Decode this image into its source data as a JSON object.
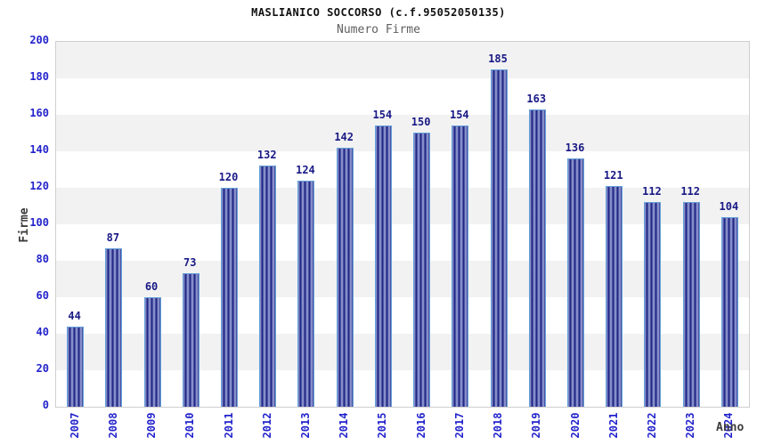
{
  "chart_data": {
    "type": "bar",
    "title": "MASLIANICO SOCCORSO (c.f.95052050135)",
    "subtitle": "Numero Firme",
    "xlabel": "Anno",
    "ylabel": "Firme",
    "categories": [
      "2007",
      "2008",
      "2009",
      "2010",
      "2011",
      "2012",
      "2013",
      "2014",
      "2015",
      "2016",
      "2017",
      "2018",
      "2019",
      "2020",
      "2021",
      "2022",
      "2023",
      "2024"
    ],
    "values": [
      44,
      87,
      60,
      73,
      120,
      132,
      124,
      142,
      154,
      150,
      154,
      185,
      163,
      136,
      121,
      112,
      112,
      104
    ],
    "ylim": [
      0,
      200
    ],
    "ytick_step": 20,
    "grid": "horizontal alternating bands",
    "legend": "none",
    "value_labels": "above bars",
    "colors": {
      "bar_stripe_light": "#a2aade",
      "bar_stripe_dark": "#141b7c",
      "bar_border": "#64a0d8",
      "axis_tick_blue": "#2323cc",
      "value_label_navy": "#191986",
      "band_gray": "#f2f2f2",
      "plot_border": "#cfcfcf",
      "title_color": "#111111",
      "subtitle_gray": "#5f5f5f"
    }
  }
}
